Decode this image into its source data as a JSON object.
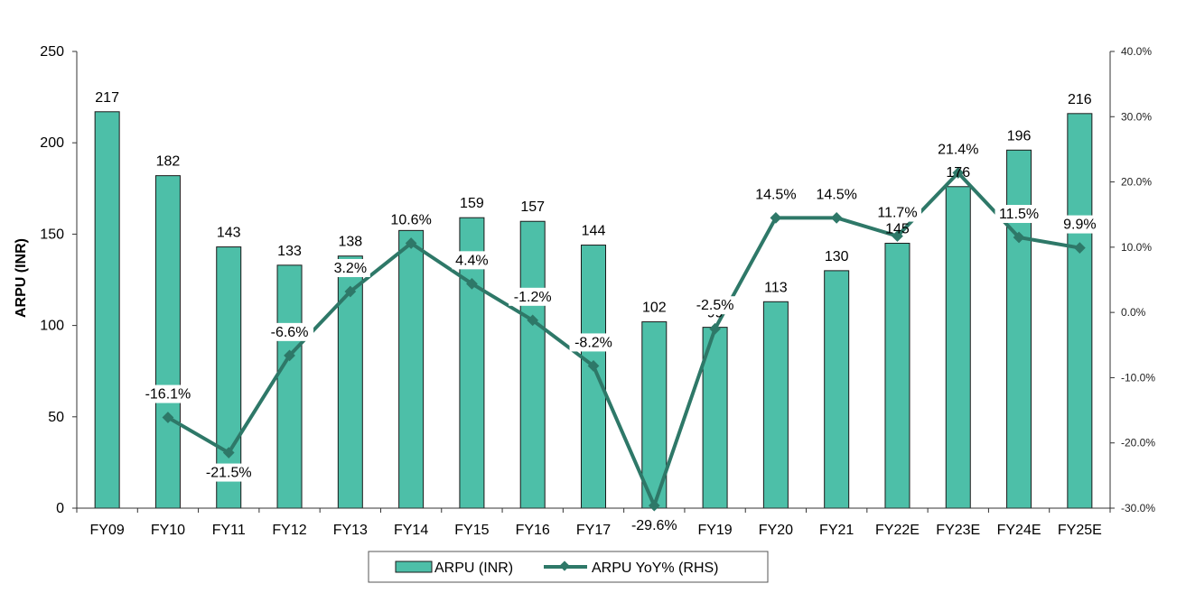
{
  "chart_data": {
    "type": "bar",
    "categories": [
      "FY09",
      "FY10",
      "FY11",
      "FY12",
      "FY13",
      "FY14",
      "FY15",
      "FY16",
      "FY17",
      "FY18",
      "FY19",
      "FY20",
      "FY21",
      "FY22E",
      "FY23E",
      "FY24E",
      "FY25E"
    ],
    "series": [
      {
        "name": "ARPU (INR)",
        "type": "bar",
        "axis": "left",
        "values": [
          217,
          182,
          143,
          133,
          138,
          152,
          159,
          157,
          144,
          102,
          99,
          113,
          130,
          145,
          176,
          196,
          216
        ],
        "labels": [
          "217",
          "182",
          "143",
          "133",
          "138",
          "152",
          "159",
          "157",
          "144",
          "102",
          "99",
          "113",
          "130",
          "145",
          "176",
          "196",
          "216"
        ]
      },
      {
        "name": "ARPU YoY% (RHS)",
        "type": "line",
        "axis": "right",
        "values": [
          null,
          -16.1,
          -21.5,
          -6.6,
          3.2,
          10.6,
          4.4,
          -1.2,
          -8.2,
          -29.6,
          -2.5,
          14.5,
          14.5,
          11.7,
          21.4,
          11.5,
          9.9
        ],
        "labels": [
          "",
          "-16.1%",
          "-21.5%",
          "-6.6%",
          "3.2%",
          "10.6%",
          "4.4%",
          "-1.2%",
          "-8.2%",
          "-29.6%",
          "-2.5%",
          "14.5%",
          "14.5%",
          "11.7%",
          "21.4%",
          "11.5%",
          "9.9%"
        ]
      }
    ],
    "ylabel": "ARPU (INR)",
    "ylim": [
      0,
      250
    ],
    "yticks": [
      "0",
      "50",
      "100",
      "150",
      "200",
      "250"
    ],
    "y2lim": [
      -30,
      40
    ],
    "y2ticks": [
      "-30.0%",
      "-20.0%",
      "-10.0%",
      "0.0%",
      "10.0%",
      "20.0%",
      "30.0%",
      "40.0%"
    ],
    "legend_position": "bottom",
    "grid": false,
    "colors": {
      "bar": "#4dbfa8",
      "bar_edge": "#1a1a1a",
      "line": "#2e7868"
    }
  }
}
